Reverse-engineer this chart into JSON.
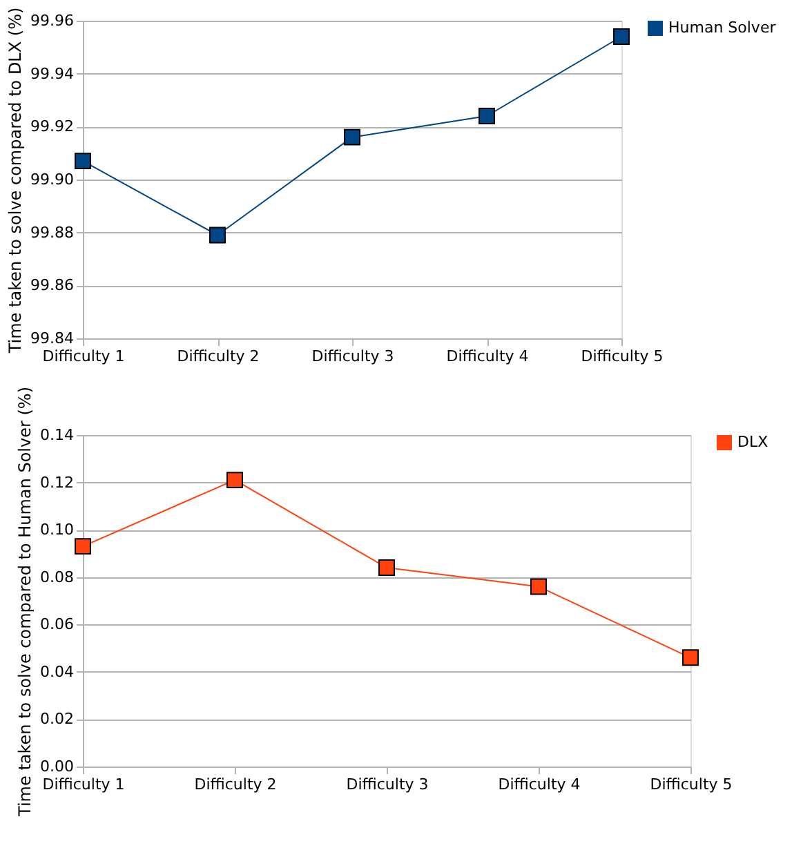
{
  "chart_data": [
    {
      "type": "line",
      "categories": [
        "Difficulty 1",
        "Difficulty 2",
        "Difficulty 3",
        "Difficulty 4",
        "Difficulty 5"
      ],
      "ylabel": "Time taken to solve compared to DLX (%)",
      "series": [
        {
          "name": "Human Solver",
          "color": "#004586",
          "values": [
            99.907,
            99.879,
            99.916,
            99.924,
            99.954
          ]
        }
      ],
      "ylim": [
        99.84,
        99.96
      ],
      "yticks": [
        {
          "value": 99.84,
          "label": "99.84"
        },
        {
          "value": 99.86,
          "label": "99.86"
        },
        {
          "value": 99.88,
          "label": "99.88"
        },
        {
          "value": 99.9,
          "label": "99.90"
        },
        {
          "value": 99.92,
          "label": "99.92"
        },
        {
          "value": 99.94,
          "label": "99.94"
        },
        {
          "value": 99.96,
          "label": "99.96"
        }
      ],
      "grid": "y",
      "legend": "right",
      "marker": "square",
      "line_style": "solid"
    },
    {
      "type": "line",
      "categories": [
        "Difficulty 1",
        "Difficulty 2",
        "Difficulty 3",
        "Difficulty 4",
        "Difficulty 5"
      ],
      "ylabel": "Time taken to solve compared to Human Solver (%)",
      "series": [
        {
          "name": "DLX",
          "color": "#ff420e",
          "values": [
            0.093,
            0.121,
            0.084,
            0.076,
            0.046
          ]
        }
      ],
      "ylim": [
        0,
        0.14
      ],
      "yticks": [
        {
          "value": 0,
          "label": "0.00"
        },
        {
          "value": 0.02,
          "label": "0.02"
        },
        {
          "value": 0.04,
          "label": "0.04"
        },
        {
          "value": 0.06,
          "label": "0.06"
        },
        {
          "value": 0.08,
          "label": "0.08"
        },
        {
          "value": 0.1,
          "label": "0.10"
        },
        {
          "value": 0.12,
          "label": "0.12"
        },
        {
          "value": 0.14,
          "label": "0.14"
        }
      ],
      "grid": "y",
      "legend": "right",
      "marker": "square",
      "line_style": "solid"
    }
  ]
}
